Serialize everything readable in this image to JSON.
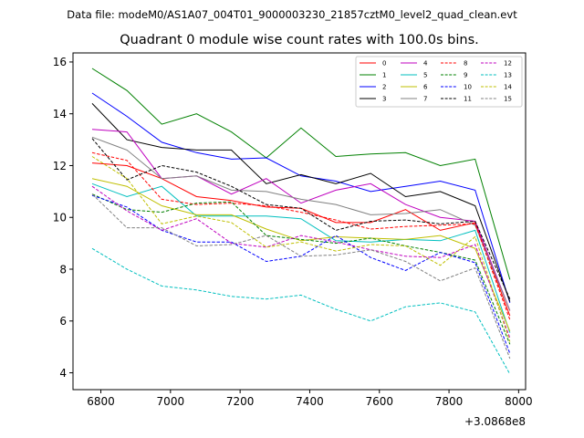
{
  "chart_data": {
    "type": "line",
    "suptitle": "Data file: modeM0/AS1A07_004T01_9000003230_21857cztM0_level2_quad_clean.evt",
    "title": "Quadrant 0 module wise count rates with 100.0s bins.",
    "xlabel": "",
    "ylabel": "",
    "x_offset_label": "+3.0868e8",
    "xlim": [
      6720,
      8020
    ],
    "ylim": [
      3.35,
      16.35
    ],
    "xticks": [
      6800,
      7000,
      7200,
      7400,
      7600,
      7800,
      8000
    ],
    "yticks": [
      4,
      6,
      8,
      10,
      12,
      14,
      16
    ],
    "grid": false,
    "legend_position": "top-right",
    "x": [
      6775,
      6875,
      6975,
      7075,
      7175,
      7275,
      7375,
      7475,
      7575,
      7675,
      7775,
      7875,
      7975
    ],
    "series": [
      {
        "name": "0",
        "color": "#ff0000",
        "dash": "solid",
        "values": [
          12.1,
          12.0,
          11.5,
          10.8,
          10.65,
          10.4,
          10.35,
          9.8,
          9.8,
          10.3,
          9.5,
          9.8,
          6.2
        ]
      },
      {
        "name": "1",
        "color": "#008000",
        "dash": "solid",
        "values": [
          15.75,
          14.9,
          13.6,
          14.0,
          13.3,
          12.3,
          13.45,
          12.35,
          12.45,
          12.5,
          12.0,
          12.25,
          7.6
        ]
      },
      {
        "name": "2",
        "color": "#0000ff",
        "dash": "solid",
        "values": [
          14.8,
          13.9,
          12.9,
          12.5,
          12.25,
          12.3,
          11.6,
          11.4,
          11.0,
          11.2,
          11.4,
          11.05,
          6.7
        ]
      },
      {
        "name": "3",
        "color": "#000000",
        "dash": "solid",
        "values": [
          14.4,
          13.0,
          12.7,
          12.6,
          12.6,
          11.3,
          11.65,
          11.3,
          11.7,
          10.8,
          11.0,
          10.45,
          6.75
        ]
      },
      {
        "name": "4",
        "color": "#bf00bf",
        "dash": "solid",
        "values": [
          13.4,
          13.3,
          11.5,
          11.6,
          10.9,
          11.5,
          10.55,
          11.05,
          11.3,
          10.5,
          10.0,
          9.85,
          6.4
        ]
      },
      {
        "name": "5",
        "color": "#00bfbf",
        "dash": "solid",
        "values": [
          11.3,
          10.8,
          11.2,
          10.05,
          10.05,
          10.05,
          9.95,
          9.1,
          9.05,
          9.15,
          9.1,
          9.5,
          5.55
        ]
      },
      {
        "name": "6",
        "color": "#bfbf00",
        "dash": "solid",
        "values": [
          11.5,
          11.2,
          10.45,
          10.1,
          10.1,
          9.55,
          9.1,
          9.25,
          9.2,
          9.15,
          9.3,
          8.8,
          5.6
        ]
      },
      {
        "name": "7",
        "color": "#808080",
        "dash": "solid",
        "values": [
          13.1,
          12.6,
          11.5,
          11.6,
          11.05,
          11.0,
          10.7,
          10.5,
          10.1,
          10.15,
          10.3,
          9.7,
          6.4
        ]
      },
      {
        "name": "8",
        "color": "#ff0000",
        "dash": "dashed",
        "values": [
          12.5,
          12.2,
          10.7,
          10.5,
          10.55,
          10.45,
          10.2,
          9.9,
          9.55,
          9.65,
          9.7,
          9.75,
          6.05
        ]
      },
      {
        "name": "9",
        "color": "#008000",
        "dash": "dashed",
        "values": [
          10.9,
          10.3,
          10.2,
          10.55,
          10.6,
          9.3,
          9.15,
          9.0,
          9.2,
          8.9,
          8.65,
          8.35,
          5.1
        ]
      },
      {
        "name": "10",
        "color": "#0000ff",
        "dash": "dashed",
        "values": [
          10.85,
          10.4,
          9.5,
          9.05,
          9.05,
          8.3,
          8.5,
          9.3,
          8.45,
          7.95,
          8.65,
          8.25,
          4.75
        ]
      },
      {
        "name": "11",
        "color": "#000000",
        "dash": "dashed",
        "values": [
          13.05,
          11.45,
          12.0,
          11.75,
          11.2,
          10.5,
          10.35,
          9.5,
          9.85,
          9.9,
          9.75,
          9.85,
          6.85
        ]
      },
      {
        "name": "12",
        "color": "#bf00bf",
        "dash": "dashed",
        "values": [
          11.2,
          10.25,
          9.5,
          9.95,
          9.0,
          8.85,
          9.3,
          9.05,
          8.75,
          8.5,
          8.45,
          8.95,
          5.35
        ]
      },
      {
        "name": "13",
        "color": "#00bfbf",
        "dash": "dashed",
        "values": [
          8.8,
          8.0,
          7.35,
          7.2,
          6.95,
          6.85,
          7.0,
          6.45,
          6.0,
          6.55,
          6.7,
          6.35,
          3.95
        ]
      },
      {
        "name": "14",
        "color": "#bfbf00",
        "dash": "dashed",
        "values": [
          12.35,
          11.5,
          9.75,
          10.05,
          9.8,
          8.85,
          9.05,
          8.7,
          8.95,
          8.9,
          8.15,
          9.25,
          5.2
        ]
      },
      {
        "name": "15",
        "color": "#808080",
        "dash": "dashed",
        "values": [
          10.9,
          9.6,
          9.6,
          8.9,
          8.95,
          9.3,
          8.5,
          8.55,
          8.75,
          8.3,
          7.55,
          8.05,
          4.55
        ]
      }
    ]
  }
}
